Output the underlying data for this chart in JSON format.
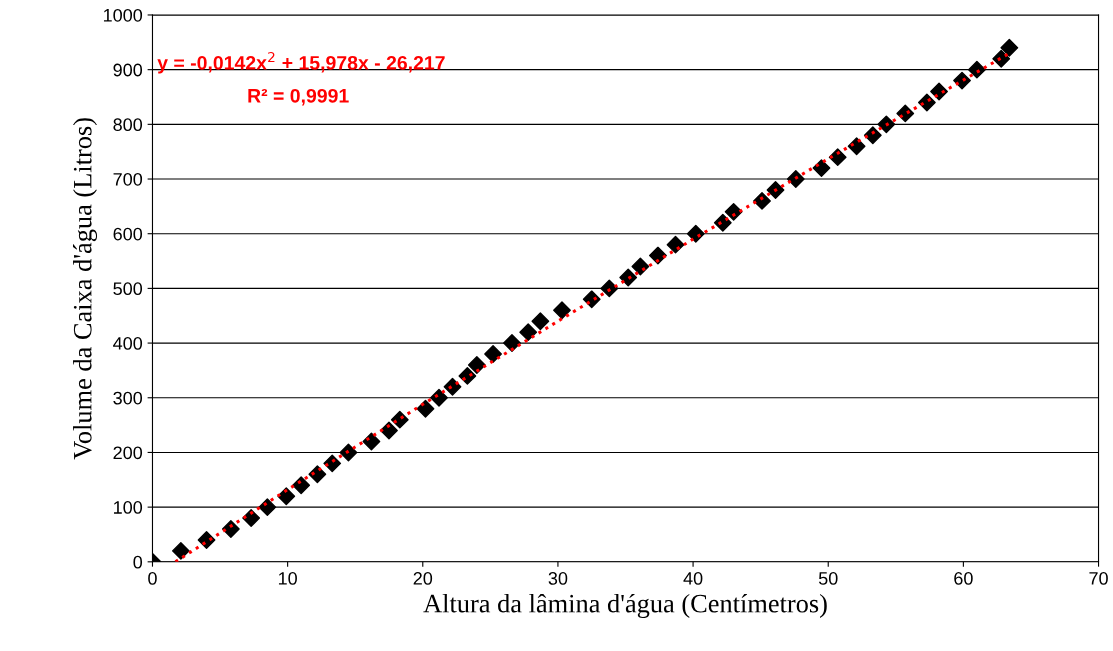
{
  "chart_data": {
    "type": "scatter",
    "xlabel": "Altura da lâmina d'água (Centímetros)",
    "ylabel": "Volume da Caixa d'água (Litros)",
    "xlim": [
      0,
      70
    ],
    "xticks": [
      0,
      10,
      20,
      30,
      40,
      50,
      60,
      70
    ],
    "ylim": [
      0,
      1000
    ],
    "yticks": [
      0,
      100,
      200,
      300,
      400,
      500,
      600,
      700,
      800,
      900,
      1000
    ],
    "grid": "y",
    "series": [
      {
        "type": "scatter",
        "color": "#000000",
        "marker": "diamond",
        "x": [
          0,
          2.1,
          4,
          5.8,
          7.3,
          8.5,
          9.9,
          11,
          12.2,
          13.3,
          14.5,
          16.2,
          17.5,
          18.3,
          20.2,
          21.2,
          22.2,
          23.3,
          24,
          25.2,
          26.6,
          27.8,
          28.7,
          30.3,
          32.5,
          33.8,
          35.2,
          36.1,
          37.4,
          38.7,
          40.2,
          42.2,
          43,
          45.1,
          46.1,
          47.6,
          49.5,
          50.7,
          52.1,
          53.3,
          54.3,
          55.7,
          57.3,
          58.2,
          59.9,
          61,
          62.8,
          63.4
        ],
        "values": [
          0,
          20,
          40,
          60,
          80,
          100,
          120,
          140,
          160,
          180,
          200,
          220,
          240,
          260,
          280,
          300,
          320,
          340,
          360,
          380,
          400,
          420,
          440,
          460,
          480,
          500,
          520,
          540,
          560,
          580,
          600,
          620,
          640,
          660,
          680,
          700,
          720,
          740,
          760,
          780,
          800,
          820,
          840,
          860,
          880,
          900,
          920,
          940
        ]
      },
      {
        "type": "line",
        "color": "#ff0000",
        "line_style": "dotted",
        "x": [
          1.7,
          10,
          20,
          30,
          40,
          50,
          63.4
        ],
        "values": [
          0,
          132,
          288,
          440,
          590,
          737,
          930
        ]
      }
    ],
    "annotations": [
      "y = -0,0142x$^{2}$ + 15,978x - 26,217",
      "R² = 0,9991"
    ]
  }
}
